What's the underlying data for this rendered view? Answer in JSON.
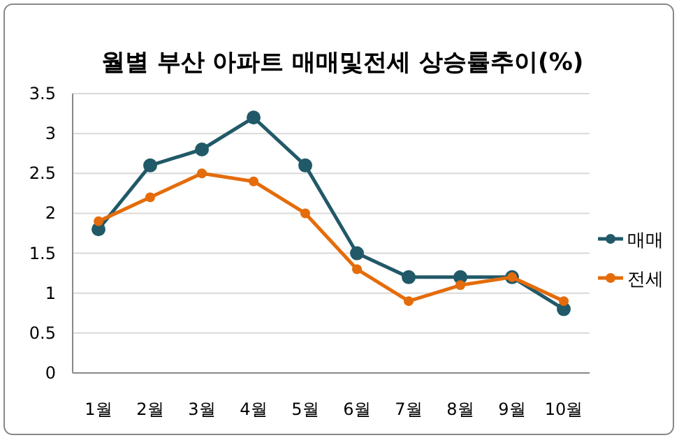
{
  "chart_data": {
    "type": "line",
    "title": "월별 부산 아파트 매매및전세 상승률추이(%)",
    "categories": [
      "1월",
      "2월",
      "3월",
      "4월",
      "5월",
      "6월",
      "7월",
      "8월",
      "9월",
      "10월"
    ],
    "series": [
      {
        "name": "매매",
        "color": "#215968",
        "values": [
          1.8,
          2.6,
          2.8,
          3.2,
          2.6,
          1.5,
          1.2,
          1.2,
          1.2,
          0.8
        ]
      },
      {
        "name": "전세",
        "color": "#e46c0a",
        "values": [
          1.9,
          2.2,
          2.5,
          2.4,
          2.0,
          1.3,
          0.9,
          1.1,
          1.2,
          0.9
        ]
      }
    ],
    "ylim": [
      0,
      3.5
    ],
    "yticks": [
      0,
      0.5,
      1,
      1.5,
      2,
      2.5,
      3,
      3.5
    ],
    "grid": "y",
    "legend": "right",
    "marker": "circle",
    "line_style": "solid"
  }
}
